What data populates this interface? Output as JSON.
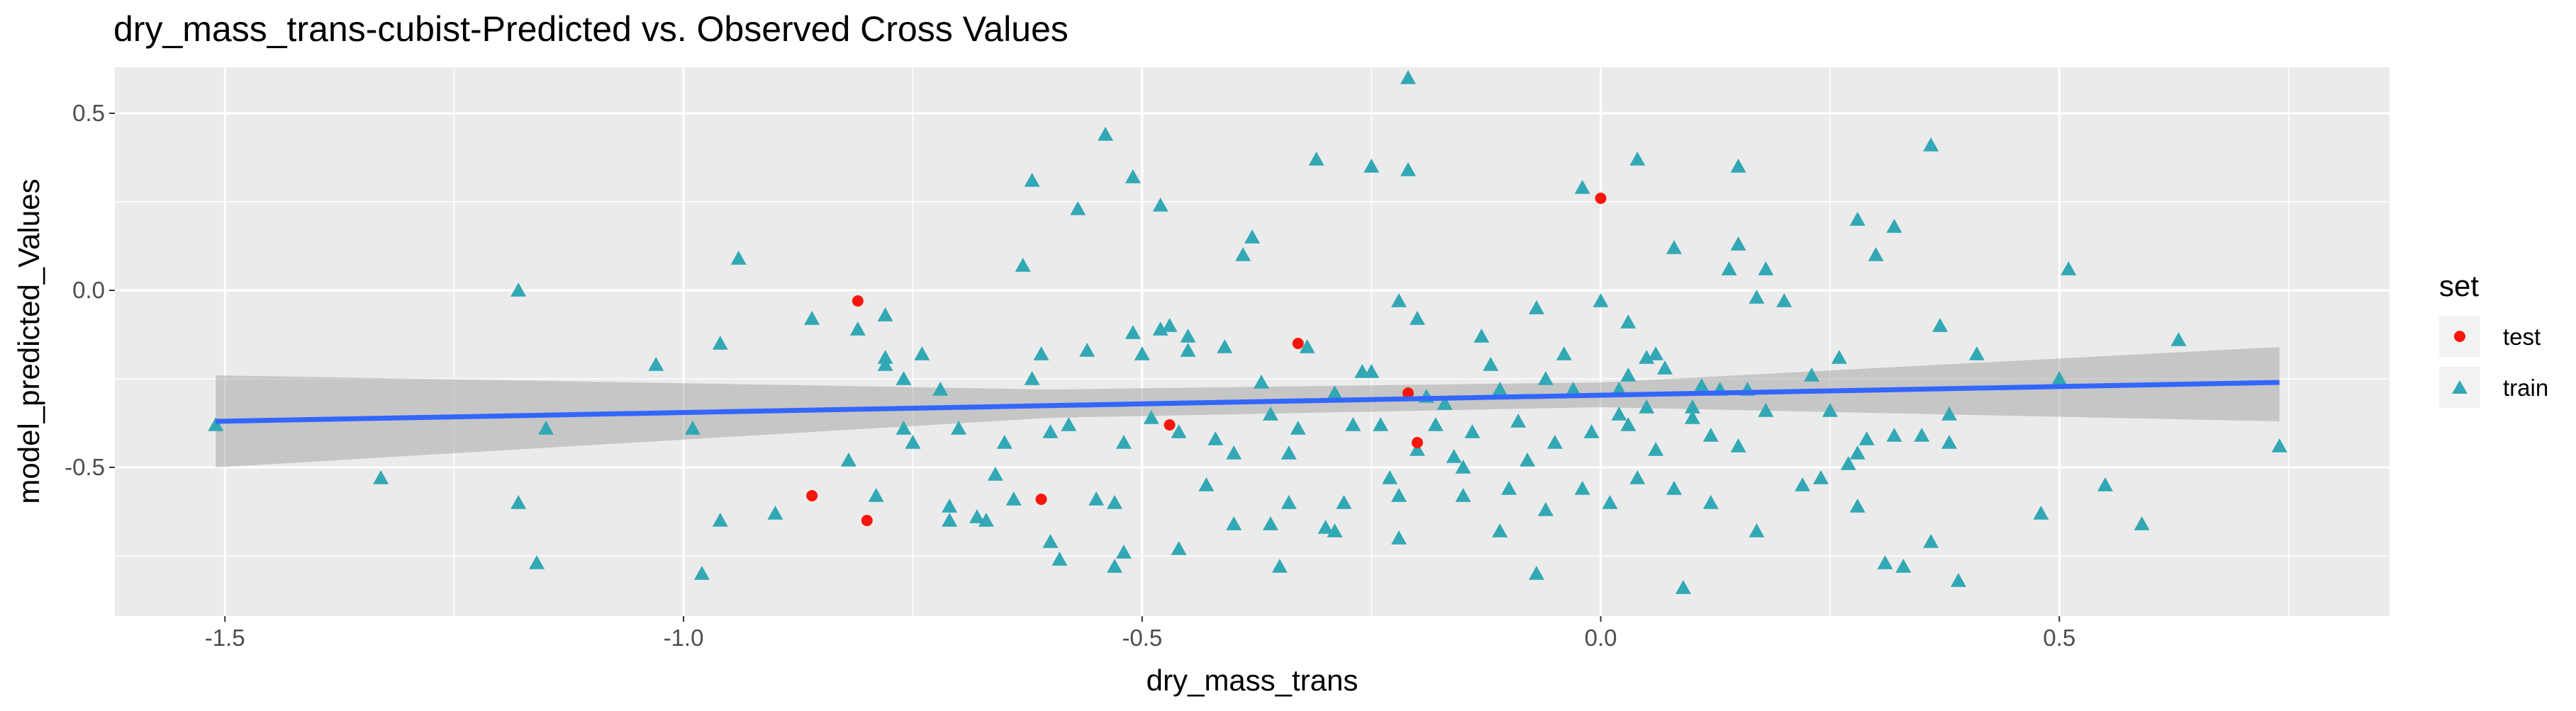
{
  "chart_data": {
    "type": "scatter",
    "title": "dry_mass_trans-cubist-Predicted vs. Observed Cross Values",
    "xlabel": "dry_mass_trans",
    "ylabel": "model_predicted_Values",
    "xlim": [
      -1.62,
      0.86
    ],
    "ylim": [
      -0.92,
      0.63
    ],
    "x_ticks": [
      -1.5,
      -1.0,
      -0.5,
      0.0,
      0.5
    ],
    "x_tick_labels": [
      "-1.5",
      "-1.0",
      "-0.5",
      "0.0",
      "0.5"
    ],
    "y_ticks": [
      -0.5,
      0.0,
      0.5
    ],
    "y_tick_labels": [
      "-0.5",
      "0.0",
      "0.5"
    ],
    "grid": true,
    "legend": {
      "title": "set",
      "position": "right"
    },
    "colors": {
      "test": "#F8766D",
      "test_marker": "#F8150C",
      "train": "#00BFC4",
      "train_marker": "#32A8B5",
      "fit_line": "#3366FF",
      "band": "#999999",
      "panel": "#EBEBEB",
      "grid": "#FFFFFF"
    },
    "series": [
      {
        "name": "test",
        "marker": "circle",
        "points": [
          [
            -0.81,
            -0.03
          ],
          [
            -0.86,
            -0.58
          ],
          [
            -0.8,
            -0.65
          ],
          [
            -0.61,
            -0.59
          ],
          [
            -0.47,
            -0.38
          ],
          [
            -0.33,
            -0.15
          ],
          [
            -0.21,
            -0.29
          ],
          [
            -0.2,
            -0.43
          ],
          [
            0.0,
            0.26
          ]
        ]
      },
      {
        "name": "train",
        "marker": "triangle",
        "points": [
          [
            -1.51,
            -0.38
          ],
          [
            -1.33,
            -0.53
          ],
          [
            -1.18,
            0.0
          ],
          [
            -1.18,
            -0.6
          ],
          [
            -1.16,
            -0.77
          ],
          [
            -1.15,
            -0.39
          ],
          [
            -1.03,
            -0.21
          ],
          [
            -0.99,
            -0.39
          ],
          [
            -0.98,
            -0.8
          ],
          [
            -0.96,
            -0.65
          ],
          [
            -0.96,
            -0.15
          ],
          [
            -0.94,
            0.09
          ],
          [
            -0.9,
            -0.63
          ],
          [
            -0.86,
            -0.08
          ],
          [
            -0.82,
            -0.48
          ],
          [
            -0.81,
            -0.11
          ],
          [
            -0.79,
            -0.58
          ],
          [
            -0.78,
            -0.07
          ],
          [
            -0.78,
            -0.19
          ],
          [
            -0.78,
            -0.21
          ],
          [
            -0.76,
            -0.25
          ],
          [
            -0.76,
            -0.39
          ],
          [
            -0.75,
            -0.43
          ],
          [
            -0.74,
            -0.18
          ],
          [
            -0.72,
            -0.28
          ],
          [
            -0.71,
            -0.61
          ],
          [
            -0.71,
            -0.65
          ],
          [
            -0.7,
            -0.39
          ],
          [
            -0.68,
            -0.64
          ],
          [
            -0.67,
            -0.65
          ],
          [
            -0.66,
            -0.52
          ],
          [
            -0.65,
            -0.43
          ],
          [
            -0.64,
            -0.59
          ],
          [
            -0.63,
            0.07
          ],
          [
            -0.62,
            0.31
          ],
          [
            -0.62,
            -0.25
          ],
          [
            -0.61,
            -0.18
          ],
          [
            -0.6,
            -0.4
          ],
          [
            -0.6,
            -0.71
          ],
          [
            -0.59,
            -0.76
          ],
          [
            -0.58,
            -0.38
          ],
          [
            -0.57,
            0.23
          ],
          [
            -0.56,
            -0.17
          ],
          [
            -0.55,
            -0.59
          ],
          [
            -0.54,
            0.44
          ],
          [
            -0.53,
            -0.6
          ],
          [
            -0.53,
            -0.78
          ],
          [
            -0.52,
            -0.74
          ],
          [
            -0.52,
            -0.43
          ],
          [
            -0.51,
            0.32
          ],
          [
            -0.51,
            -0.12
          ],
          [
            -0.5,
            -0.18
          ],
          [
            -0.49,
            -0.36
          ],
          [
            -0.48,
            0.24
          ],
          [
            -0.48,
            -0.11
          ],
          [
            -0.47,
            -0.1
          ],
          [
            -0.46,
            -0.73
          ],
          [
            -0.46,
            -0.4
          ],
          [
            -0.45,
            -0.13
          ],
          [
            -0.45,
            -0.17
          ],
          [
            -0.43,
            -0.55
          ],
          [
            -0.42,
            -0.42
          ],
          [
            -0.41,
            -0.16
          ],
          [
            -0.4,
            -0.66
          ],
          [
            -0.4,
            -0.46
          ],
          [
            -0.39,
            0.1
          ],
          [
            -0.38,
            0.15
          ],
          [
            -0.37,
            -0.26
          ],
          [
            -0.36,
            -0.35
          ],
          [
            -0.36,
            -0.66
          ],
          [
            -0.35,
            -0.78
          ],
          [
            -0.34,
            -0.46
          ],
          [
            -0.34,
            -0.6
          ],
          [
            -0.33,
            -0.39
          ],
          [
            -0.32,
            -0.16
          ],
          [
            -0.31,
            0.37
          ],
          [
            -0.3,
            -0.67
          ],
          [
            -0.29,
            -0.68
          ],
          [
            -0.29,
            -0.29
          ],
          [
            -0.28,
            -0.6
          ],
          [
            -0.27,
            -0.38
          ],
          [
            -0.26,
            -0.23
          ],
          [
            -0.25,
            0.35
          ],
          [
            -0.25,
            -0.23
          ],
          [
            -0.24,
            -0.38
          ],
          [
            -0.23,
            -0.53
          ],
          [
            -0.22,
            -0.58
          ],
          [
            -0.22,
            -0.7
          ],
          [
            -0.22,
            -0.03
          ],
          [
            -0.21,
            0.34
          ],
          [
            -0.21,
            0.6
          ],
          [
            -0.2,
            -0.08
          ],
          [
            -0.2,
            -0.45
          ],
          [
            -0.19,
            -0.3
          ],
          [
            -0.18,
            -0.38
          ],
          [
            -0.17,
            -0.32
          ],
          [
            -0.16,
            -0.47
          ],
          [
            -0.15,
            -0.5
          ],
          [
            -0.15,
            -0.58
          ],
          [
            -0.14,
            -0.4
          ],
          [
            -0.13,
            -0.13
          ],
          [
            -0.12,
            -0.21
          ],
          [
            -0.11,
            -0.28
          ],
          [
            -0.11,
            -0.68
          ],
          [
            -0.1,
            -0.56
          ],
          [
            -0.09,
            -0.37
          ],
          [
            -0.08,
            -0.48
          ],
          [
            -0.07,
            -0.8
          ],
          [
            -0.07,
            -0.05
          ],
          [
            -0.06,
            -0.25
          ],
          [
            -0.06,
            -0.62
          ],
          [
            -0.05,
            -0.43
          ],
          [
            -0.04,
            -0.18
          ],
          [
            -0.03,
            -0.28
          ],
          [
            -0.02,
            -0.56
          ],
          [
            -0.02,
            0.29
          ],
          [
            -0.01,
            -0.4
          ],
          [
            0.0,
            -0.03
          ],
          [
            0.01,
            -0.6
          ],
          [
            0.02,
            -0.35
          ],
          [
            0.02,
            -0.28
          ],
          [
            0.03,
            -0.09
          ],
          [
            0.03,
            -0.24
          ],
          [
            0.03,
            -0.38
          ],
          [
            0.04,
            0.37
          ],
          [
            0.04,
            -0.53
          ],
          [
            0.05,
            -0.19
          ],
          [
            0.05,
            -0.33
          ],
          [
            0.06,
            -0.18
          ],
          [
            0.06,
            -0.45
          ],
          [
            0.07,
            -0.22
          ],
          [
            0.08,
            0.12
          ],
          [
            0.08,
            -0.56
          ],
          [
            0.09,
            -0.84
          ],
          [
            0.1,
            -0.33
          ],
          [
            0.1,
            -0.36
          ],
          [
            0.11,
            -0.27
          ],
          [
            0.12,
            -0.41
          ],
          [
            0.12,
            -0.6
          ],
          [
            0.13,
            -0.28
          ],
          [
            0.14,
            0.06
          ],
          [
            0.15,
            0.35
          ],
          [
            0.15,
            0.13
          ],
          [
            0.15,
            -0.44
          ],
          [
            0.16,
            -0.28
          ],
          [
            0.17,
            -0.68
          ],
          [
            0.17,
            -0.02
          ],
          [
            0.18,
            0.06
          ],
          [
            0.18,
            -0.34
          ],
          [
            0.2,
            -0.03
          ],
          [
            0.22,
            -0.55
          ],
          [
            0.23,
            -0.24
          ],
          [
            0.24,
            -0.53
          ],
          [
            0.25,
            -0.34
          ],
          [
            0.26,
            -0.19
          ],
          [
            0.27,
            -0.49
          ],
          [
            0.28,
            -0.61
          ],
          [
            0.28,
            0.2
          ],
          [
            0.28,
            -0.46
          ],
          [
            0.29,
            -0.42
          ],
          [
            0.3,
            0.1
          ],
          [
            0.31,
            -0.77
          ],
          [
            0.32,
            0.18
          ],
          [
            0.32,
            -0.41
          ],
          [
            0.33,
            -0.78
          ],
          [
            0.35,
            -0.41
          ],
          [
            0.36,
            -0.71
          ],
          [
            0.36,
            0.41
          ],
          [
            0.37,
            -0.1
          ],
          [
            0.38,
            -0.35
          ],
          [
            0.38,
            -0.43
          ],
          [
            0.39,
            -0.82
          ],
          [
            0.41,
            -0.18
          ],
          [
            0.48,
            -0.63
          ],
          [
            0.5,
            -0.25
          ],
          [
            0.51,
            0.06
          ],
          [
            0.55,
            -0.55
          ],
          [
            0.59,
            -0.66
          ],
          [
            0.63,
            -0.14
          ],
          [
            0.74,
            -0.44
          ]
        ]
      }
    ],
    "fit_line": {
      "points": [
        [
          -1.51,
          -0.37
        ],
        [
          0.74,
          -0.26
        ]
      ],
      "band_lower": [
        [
          -1.51,
          -0.5
        ],
        [
          -0.6,
          -0.36
        ],
        [
          0.0,
          -0.33
        ],
        [
          0.74,
          -0.37
        ]
      ],
      "band_upper": [
        [
          -1.51,
          -0.24
        ],
        [
          -0.6,
          -0.28
        ],
        [
          0.0,
          -0.26
        ],
        [
          0.74,
          -0.16
        ]
      ]
    }
  }
}
